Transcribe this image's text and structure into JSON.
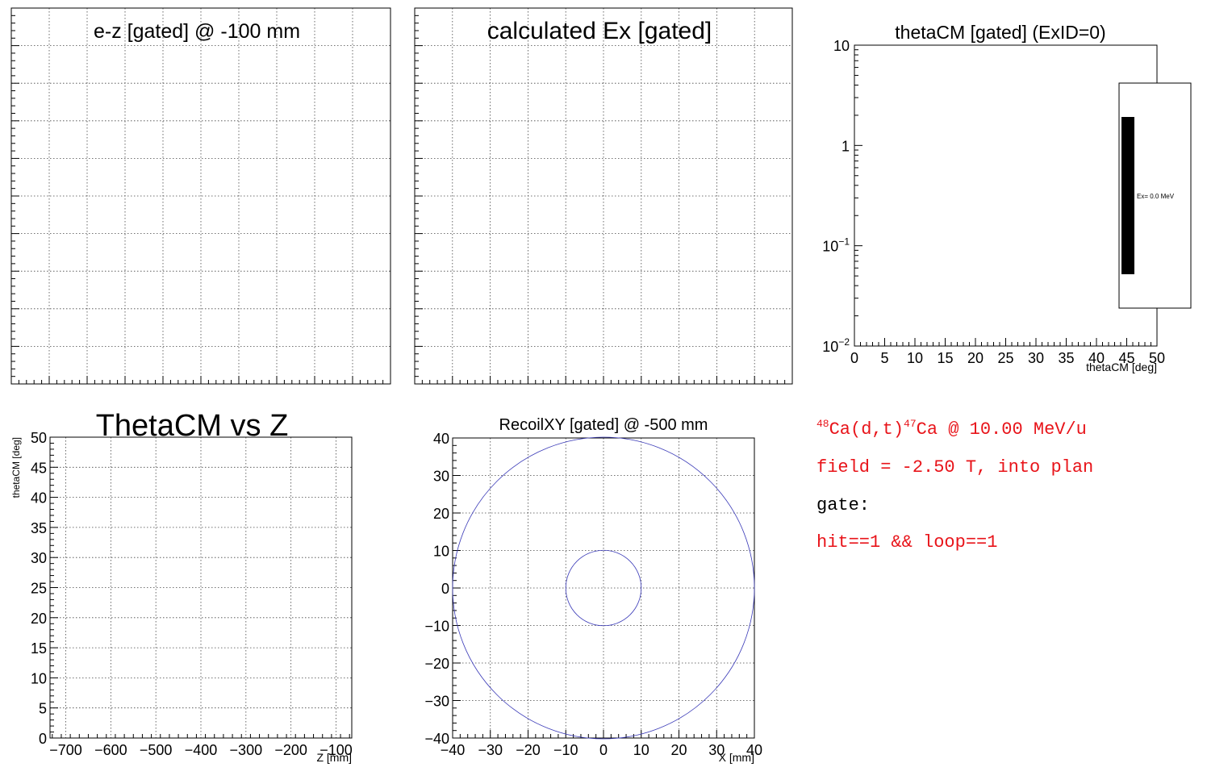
{
  "chart_data": [
    {
      "id": "ez",
      "type": "scatter",
      "title": "e-z [gated] @  -100 mm",
      "grid": true,
      "series": []
    },
    {
      "id": "ex",
      "type": "bar",
      "title": "calculated Ex [gated]",
      "grid": true,
      "series": []
    },
    {
      "id": "thetacm",
      "type": "bar",
      "title": "thetaCM [gated] (ExID=0)",
      "xlabel": "thetaCM [deg]",
      "xlim": [
        0,
        50
      ],
      "ylim": [
        0.01,
        10
      ],
      "ylog": true,
      "xticks": [
        "0",
        "5",
        "10",
        "15",
        "20",
        "25",
        "30",
        "35",
        "40",
        "45",
        "50"
      ],
      "yticks": [
        {
          "base": "10",
          "exp": "−2",
          "value": 0.01
        },
        {
          "base": "10",
          "exp": "−1",
          "value": 0.1
        },
        {
          "base": "1",
          "exp": "",
          "value": 1
        },
        {
          "base": "10",
          "exp": "",
          "value": 10
        }
      ],
      "grid": false,
      "legend": {
        "entry": "Ex=  0.0 MeV",
        "placement": "right"
      }
    },
    {
      "id": "thetaz",
      "type": "scatter",
      "title": "ThetaCM vs Z",
      "xlabel": "Z [mm]",
      "ylabel": "thetaCM [deg]",
      "xlim": [
        -735,
        -65
      ],
      "ylim": [
        0,
        50
      ],
      "xticks": [
        -700,
        -600,
        -500,
        -400,
        -300,
        -200,
        -100
      ],
      "yticks": [
        0,
        5,
        10,
        15,
        20,
        25,
        30,
        35,
        40,
        45,
        50
      ],
      "grid": true,
      "series": []
    },
    {
      "id": "recoil",
      "type": "scatter",
      "title": "RecoilXY [gated] @ -500 mm",
      "xlabel": "X [mm]",
      "xlim": [
        -40,
        40
      ],
      "ylim": [
        -40,
        40
      ],
      "xticks": [
        -40,
        -30,
        -20,
        -10,
        0,
        10,
        20,
        30,
        40
      ],
      "yticks": [
        -40,
        -30,
        -20,
        -10,
        0,
        10,
        20,
        30,
        40
      ],
      "grid": true,
      "circles": [
        {
          "cx": 0,
          "cy": 0,
          "r": 40
        },
        {
          "cx": 0,
          "cy": 0,
          "r": 10
        }
      ],
      "circle_color": "#3b3bb8"
    }
  ],
  "info": {
    "reaction": {
      "a1": "48",
      "p1": "Ca(d,t)",
      "a2": "47",
      "p2": "Ca @ 10.00 MeV/u"
    },
    "field": "field = -2.50 T, into plan",
    "gate_label": "gate:",
    "gate": "hit==1 && loop==1",
    "color_red": "#e8141a"
  }
}
